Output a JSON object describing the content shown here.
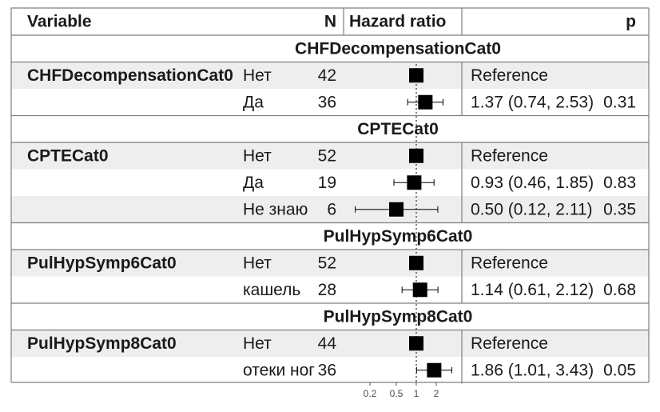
{
  "chart_data": {
    "type": "forest",
    "headers": {
      "variable": "Variable",
      "n": "N",
      "hr": "Hazard ratio",
      "p": "p"
    },
    "x_scale": "log",
    "x_ticks": [
      {
        "value": 0.2,
        "label": "0.2"
      },
      {
        "value": 0.5,
        "label": "0.5"
      },
      {
        "value": 1,
        "label": "1"
      },
      {
        "value": 2,
        "label": "2"
      }
    ],
    "reference_line": 1,
    "blocks": [
      {
        "title": "CHFDecompensationCat0",
        "variable": "CHFDecompensationCat0",
        "rows": [
          {
            "level": "Нет",
            "n": "42",
            "hr": 1,
            "lo": null,
            "hi": null,
            "text": "Reference",
            "p": ""
          },
          {
            "level": "Да",
            "n": "36",
            "hr": 1.37,
            "lo": 0.74,
            "hi": 2.53,
            "text": "1.37 (0.74, 2.53)",
            "p": "0.31"
          }
        ]
      },
      {
        "title": "CPTECat0",
        "variable": "CPTECat0",
        "rows": [
          {
            "level": "Нет",
            "n": "52",
            "hr": 1,
            "lo": null,
            "hi": null,
            "text": "Reference",
            "p": ""
          },
          {
            "level": "Да",
            "n": "19",
            "hr": 0.93,
            "lo": 0.46,
            "hi": 1.85,
            "text": "0.93 (0.46, 1.85)",
            "p": "0.83"
          },
          {
            "level": "Не знаю",
            "n": "6",
            "hr": 0.5,
            "lo": 0.12,
            "hi": 2.11,
            "text": "0.50 (0.12, 2.11)",
            "p": "0.35"
          }
        ]
      },
      {
        "title": "PulHypSymp6Cat0",
        "variable": "PulHypSymp6Cat0",
        "rows": [
          {
            "level": "Нет",
            "n": "52",
            "hr": 1,
            "lo": null,
            "hi": null,
            "text": "Reference",
            "p": ""
          },
          {
            "level": "кашель",
            "n": "28",
            "hr": 1.14,
            "lo": 0.61,
            "hi": 2.12,
            "text": "1.14 (0.61, 2.12)",
            "p": "0.68"
          }
        ]
      },
      {
        "title": "PulHypSymp8Cat0",
        "variable": "PulHypSymp8Cat0",
        "rows": [
          {
            "level": "Нет",
            "n": "44",
            "hr": 1,
            "lo": null,
            "hi": null,
            "text": "Reference",
            "p": ""
          },
          {
            "level": "отеки ног",
            "n": "36",
            "hr": 1.86,
            "lo": 1.01,
            "hi": 3.43,
            "text": "1.86 (1.01, 3.43)",
            "p": "0.05"
          }
        ]
      }
    ],
    "colors": {
      "stripe": "#eeeeee",
      "border": "#7f7f7f",
      "marker": "#000000",
      "reference_line": "#000000"
    }
  }
}
